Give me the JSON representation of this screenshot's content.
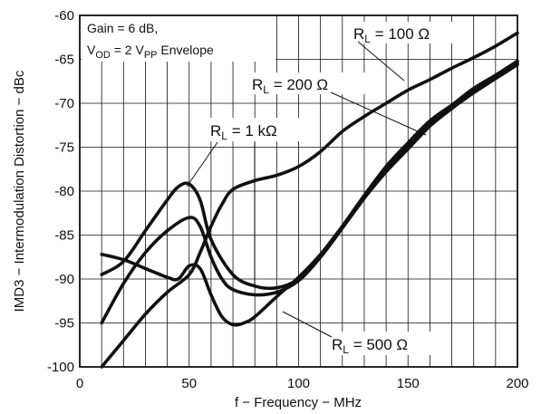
{
  "chart_data": {
    "type": "line",
    "xlabel": "f − Frequency − MHz",
    "ylabel": "IMD3 − Intermodulation Distortion − dBc",
    "xlim": [
      0,
      200
    ],
    "ylim": [
      -100,
      -60
    ],
    "x_ticks": [
      0,
      50,
      100,
      150,
      200
    ],
    "x_tick_labels": [
      "0",
      "50",
      "100",
      "150",
      "200"
    ],
    "y_ticks": [
      -100,
      -95,
      -90,
      -85,
      -80,
      -75,
      -70,
      -65,
      -60
    ],
    "y_tick_labels": [
      "-100",
      "-95",
      "-90",
      "-85",
      "-80",
      "-75",
      "-70",
      "-65",
      "-60"
    ],
    "x_grid_step": 10,
    "y_grid_step": 5,
    "grid": true,
    "annotation": {
      "line1": "Gain = 6 dB,",
      "line2_a": "V",
      "line2_a_sub": "OD",
      "line2_b": " = 2 V",
      "line2_b_sub": "PP",
      "line2_c": " Envelope"
    },
    "curve_labels": [
      {
        "prefix": "R",
        "sub": "L",
        "text": " = 100 Ω",
        "series": 0
      },
      {
        "prefix": "R",
        "sub": "L",
        "text": " = 200 Ω",
        "series": 1
      },
      {
        "prefix": "R",
        "sub": "L",
        "text": " = 1 kΩ",
        "series": 2
      },
      {
        "prefix": "R",
        "sub": "L",
        "text": " = 500 Ω",
        "series": 3
      }
    ],
    "series": [
      {
        "label": "RL = 100 Ω",
        "x": [
          10,
          20,
          30,
          40,
          50,
          55,
          60,
          65,
          70,
          80,
          90,
          100,
          110,
          120,
          130,
          140,
          150,
          160,
          170,
          180,
          190,
          200
        ],
        "y": [
          -100,
          -97,
          -94,
          -91.5,
          -89.5,
          -87,
          -84,
          -81.5,
          -79.8,
          -78.8,
          -78.2,
          -77.2,
          -75.5,
          -73.2,
          -71.5,
          -70,
          -68.5,
          -67.3,
          -66,
          -64.8,
          -63.5,
          -62
        ]
      },
      {
        "label": "RL = 200 Ω",
        "x": [
          10,
          20,
          30,
          40,
          50,
          55,
          60,
          65,
          70,
          80,
          90,
          100,
          110,
          120,
          130,
          140,
          150,
          160,
          170,
          180,
          190,
          200
        ],
        "y": [
          -95,
          -90.5,
          -87,
          -84.5,
          -83,
          -84,
          -87.5,
          -90,
          -91.2,
          -91.8,
          -91.5,
          -90.2,
          -87.5,
          -84,
          -80.5,
          -77.2,
          -74.5,
          -72,
          -70.2,
          -68.3,
          -66.8,
          -65.2
        ]
      },
      {
        "label": "RL = 1 kΩ",
        "x": [
          10,
          20,
          30,
          40,
          45,
          50,
          55,
          60,
          70,
          80,
          90,
          100,
          110,
          120,
          130,
          140,
          150,
          160,
          170,
          180,
          190,
          200
        ],
        "y": [
          -89.5,
          -88,
          -84.5,
          -81,
          -79.5,
          -79.2,
          -81,
          -85.5,
          -89.5,
          -90.8,
          -91,
          -90,
          -87.5,
          -84.2,
          -80.8,
          -77.5,
          -74.8,
          -72.3,
          -70.3,
          -68.5,
          -67,
          -65.4
        ]
      },
      {
        "label": "RL = 500 Ω",
        "x": [
          10,
          20,
          30,
          40,
          45,
          50,
          55,
          60,
          65,
          70,
          75,
          80,
          90,
          100,
          110,
          120,
          130,
          140,
          150,
          160,
          170,
          180,
          190,
          200
        ],
        "y": [
          -87.2,
          -87.8,
          -88.8,
          -89.8,
          -90,
          -88.5,
          -88.8,
          -91.8,
          -94.3,
          -95.2,
          -95,
          -94.3,
          -92,
          -89.8,
          -87.2,
          -84,
          -80.8,
          -77.8,
          -75.2,
          -72.6,
          -70.6,
          -68.8,
          -67.2,
          -65.6
        ]
      }
    ]
  }
}
